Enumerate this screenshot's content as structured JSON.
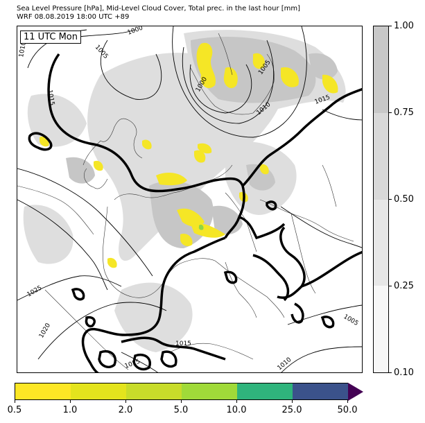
{
  "header": {
    "title_line1": "Sea Level Pressure [hPa], Mid-Level Cloud Cover, Total prec. in the last hour [mm]",
    "title_line2": "WRF 08.08.2019 18:00 UTC +89"
  },
  "map": {
    "time_label": "11 UTC Mon",
    "isobar_labels": [
      "1000",
      "1005",
      "1005",
      "1010",
      "1015",
      "1015",
      "1015",
      "1015",
      "1010",
      "1005",
      "1020",
      "1025",
      "1000",
      "1010"
    ],
    "highlighted_isobar": "1015",
    "colors": {
      "isobar_thin": "#000000",
      "isobar_thick": "#000000",
      "cloud_light": "#dcdcdc",
      "cloud_medium": "#c8c8c8",
      "precip_low": "#fde725",
      "precip_mid": "#a0da39"
    }
  },
  "cloud_colorbar": {
    "ticks": [
      "0.10",
      "0.25",
      "0.50",
      "0.75",
      "1.00"
    ],
    "colors": [
      "#f7f7f7",
      "#e7e7e7",
      "#d9d9d9",
      "#c8c8c8"
    ]
  },
  "precip_colorbar": {
    "ticks": [
      "0.5",
      "1.0",
      "2.0",
      "5.0",
      "10.0",
      "25.0",
      "50.0"
    ],
    "colors": [
      "#fde725",
      "#e4e41d",
      "#c8dc2a",
      "#a0da39",
      "#2fb47c",
      "#3b528b"
    ],
    "extend_color": "#440154"
  }
}
